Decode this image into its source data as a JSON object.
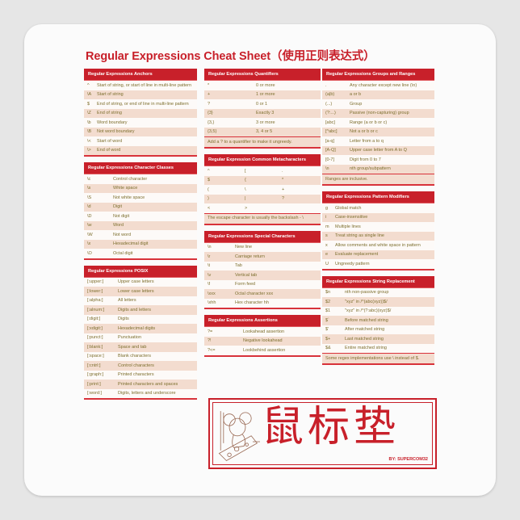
{
  "title": "Regular Expressions Cheat Sheet（使用正则表达式）",
  "colors": {
    "accent": "#c8202a",
    "row_alt": "#f3dccf",
    "text": "#7d6f2e"
  },
  "columns": [
    [
      {
        "title": "Regular Expressions Anchors",
        "rows": [
          [
            "^",
            "Start of string, or start of line in multi-line pattern"
          ],
          [
            "\\A",
            "Start of string"
          ],
          [
            "$",
            "End of string, or end of line in multi-line pattern"
          ],
          [
            "\\Z",
            "End of string"
          ],
          [
            "\\b",
            "Word boundary"
          ],
          [
            "\\B",
            "Not word boundary"
          ],
          [
            "\\<",
            "Start of word"
          ],
          [
            "\\>",
            "End of word"
          ]
        ]
      },
      {
        "title": "Regular Expressions Character Classes",
        "rows": [
          [
            "\\c",
            "Control character"
          ],
          [
            "\\s",
            "White space"
          ],
          [
            "\\S",
            "Not white space"
          ],
          [
            "\\d",
            "Digit"
          ],
          [
            "\\D",
            "Not digit"
          ],
          [
            "\\w",
            "Word"
          ],
          [
            "\\W",
            "Not word"
          ],
          [
            "\\x",
            "Hexadecimal digit"
          ],
          [
            "\\O",
            "Octal digit"
          ]
        ]
      },
      {
        "title": "Regular Expressions POSIX",
        "rows": [
          [
            "[:upper:]",
            "Upper case letters"
          ],
          [
            "[:lower:]",
            "Lower case letters"
          ],
          [
            "[:alpha:]",
            "All letters"
          ],
          [
            "[:alnum:]",
            "Digits and letters"
          ],
          [
            "[:digit:]",
            "Digits"
          ],
          [
            "[:xdigit:]",
            "Hexadecimal digits"
          ],
          [
            "[:punct:]",
            "Punctuation"
          ],
          [
            "[:blank:]",
            "Space and tab"
          ],
          [
            "[:space:]",
            "Blank characters"
          ],
          [
            "[:cntrl:]",
            "Control characters"
          ],
          [
            "[:graph:]",
            "Printed characters"
          ],
          [
            "[:print:]",
            "Printed characters and spaces"
          ],
          [
            "[:word:]",
            "Digits, letters and underscore"
          ]
        ]
      }
    ],
    [
      {
        "title": "Regular Expressions Quantifiers",
        "rows": [
          [
            "*",
            "0 or more"
          ],
          [
            "+",
            "1 or more"
          ],
          [
            "?",
            "0 or 1"
          ],
          [
            "{3}",
            "Exactly 3"
          ],
          [
            "{3,}",
            "3 or more"
          ],
          [
            "{3,5}",
            "3, 4 or 5"
          ]
        ],
        "note": "Add a ? to a quantifier to make it ungreedy."
      },
      {
        "title": "Regular Expression Common Metacharacters",
        "rows": [
          [
            "^",
            "[",
            "."
          ],
          [
            "$",
            "{",
            "*"
          ],
          [
            "(",
            "\\",
            "+"
          ],
          [
            ")",
            "|",
            "?"
          ],
          [
            "<",
            ">",
            ""
          ]
        ],
        "note": "The escape character is usually the backslash - \\"
      },
      {
        "title": "Regular Expressions Special Characters",
        "rows": [
          [
            "\\n",
            "New line"
          ],
          [
            "\\r",
            "Carriage return"
          ],
          [
            "\\t",
            "Tab"
          ],
          [
            "\\v",
            "Vertical tab"
          ],
          [
            "\\f",
            "Form feed"
          ],
          [
            "\\xxx",
            "Octal character xxx"
          ],
          [
            "\\xhh",
            "Hex character hh"
          ]
        ]
      },
      {
        "title": "Regular Expressions Assertions",
        "rows": [
          [
            "?=",
            "Lookahead assertion"
          ],
          [
            "?!",
            "Negative lookahead"
          ],
          [
            "?<=",
            "Lookbehind assertion"
          ]
        ]
      }
    ],
    [
      {
        "title": "Regular Expressions Groups and Ranges",
        "rows": [
          [
            ".",
            "Any character except new line (\\n)"
          ],
          [
            "(a|b)",
            "a or b"
          ],
          [
            "(...)",
            "Group"
          ],
          [
            "(?:...)",
            "Passive (non-capturing) group"
          ],
          [
            "[abc]",
            "Range (a or b or c)"
          ],
          [
            "[^abc]",
            "Not a or b or c"
          ],
          [
            "[a-q]",
            "Letter from a to q"
          ],
          [
            "[A-Q]",
            "Upper case letter from A to Q"
          ],
          [
            "[0-7]",
            "Digit from 0 to 7"
          ],
          [
            "\\n",
            "nth group/subpattern"
          ]
        ],
        "note": "Ranges are inclusive."
      },
      {
        "title": "Regular Expressions Pattern Modifiers",
        "rows": [
          [
            "g",
            "Global match"
          ],
          [
            "i",
            "Case-insensitive"
          ],
          [
            "m",
            "Multiple lines"
          ],
          [
            "s",
            "Treat string as single line"
          ],
          [
            "x",
            "Allow comments and white space in pattern"
          ],
          [
            "e",
            "Evaluate replacement"
          ],
          [
            "U",
            "Ungreedy pattern"
          ]
        ]
      },
      {
        "title": "Regular Expressions String Replacement",
        "rows": [
          [
            "$n",
            "nth non-passive group"
          ],
          [
            "$2",
            "\"xyz\" in /^(abc(xyz))$/"
          ],
          [
            "$1",
            "\"xyz\" in /^(?:abc)(xyz)$/"
          ],
          [
            "$`",
            "Before matched string"
          ],
          [
            "$'",
            "After matched string"
          ],
          [
            "$+",
            "Last matched string"
          ],
          [
            "$&",
            "Entire matched string"
          ]
        ],
        "note": "Some regex implementations use \\ instead of $."
      }
    ]
  ],
  "logo": {
    "chinese": "鼠标垫",
    "byline": "BY: SUPERCOM32",
    "icon": "mouse-on-cheese-icon"
  }
}
